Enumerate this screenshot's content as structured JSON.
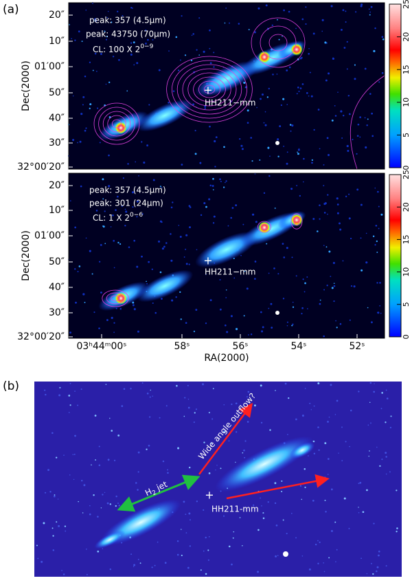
{
  "panel_a": {
    "label": "(a)",
    "top": {
      "peak_1": "peak: 357 (4.5μm)",
      "peak_2": "peak: 43750 (70μm)",
      "cl": {
        "text": "CL: 100 X 2",
        "sup": "0−9"
      },
      "source": "HH211−mm"
    },
    "bottom": {
      "peak_1": "peak: 357 (4.5μm)",
      "peak_2": "peak: 301 (24μm)",
      "cl": {
        "text": "CL: 1 X 2",
        "sup": "0−6"
      },
      "source": "HH211−mm"
    },
    "y_label": "Dec(2000)",
    "x_label": "RA(2000)",
    "dec_ticks": [
      "20″",
      "10″",
      "01′00″",
      "50″",
      "40″",
      "30″",
      "32°00′20″"
    ],
    "ra_ticks": [
      "03ʰ44ᵐ00ˢ",
      "58ˢ",
      "56ˢ",
      "54ˢ",
      "52ˢ"
    ],
    "colorbar": {
      "lim": [
        0,
        25
      ],
      "ticks": [
        0,
        5,
        10,
        15,
        20,
        25
      ]
    }
  },
  "panel_b": {
    "label": "(b)",
    "jet_label": {
      "text": "H",
      "sub": "2",
      "rest": " jet"
    },
    "outflow_label": "Wide angle outflow?",
    "source": "HH211-mm"
  }
}
